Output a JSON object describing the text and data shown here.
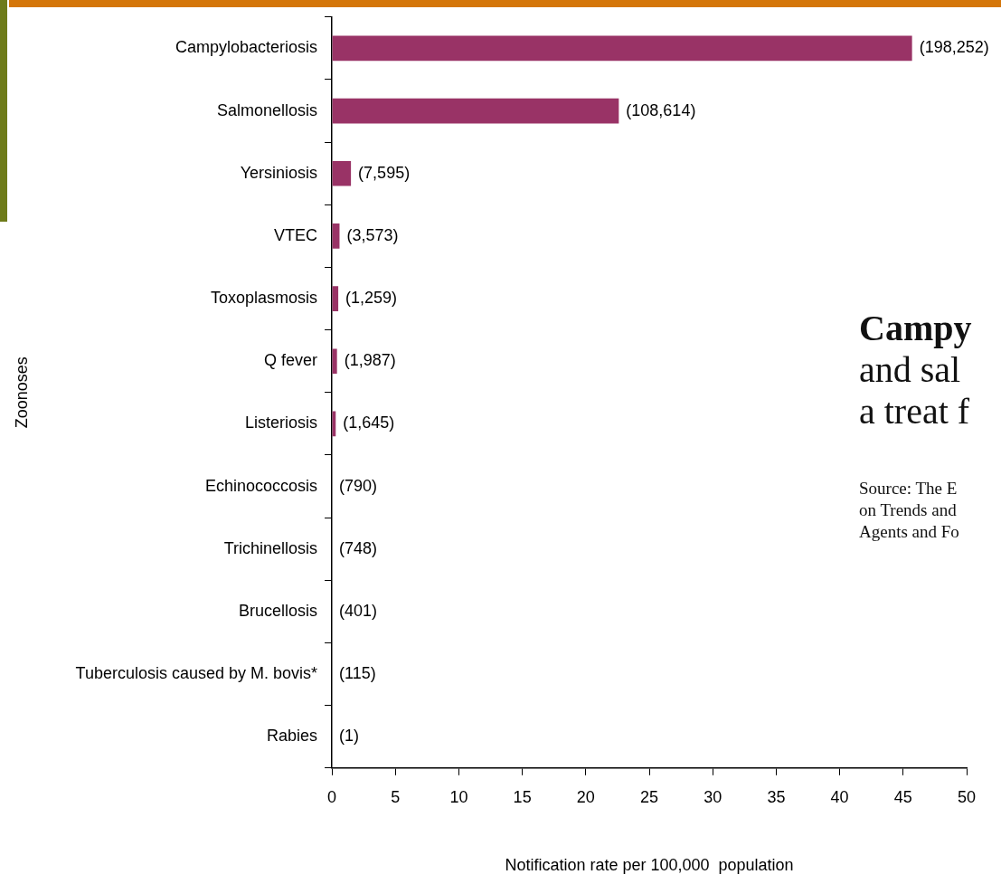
{
  "chart_data": {
    "type": "bar",
    "orientation": "horizontal",
    "categories": [
      "Campylobacteriosis",
      "Salmonellosis",
      "Yersiniosis",
      "VTEC",
      "Toxoplasmosis",
      "Q fever",
      "Listeriosis",
      "Echinococcosis",
      "Trichinellosis",
      "Brucellosis",
      "Tuberculosis caused by M. bovis*",
      "Rabies"
    ],
    "values": [
      45.7,
      22.6,
      1.5,
      0.6,
      0.5,
      0.4,
      0.3,
      0,
      0,
      0,
      0,
      0
    ],
    "color": "#993366",
    "xlim": [
      0,
      50
    ],
    "xticks": [
      0,
      5,
      10,
      15,
      20,
      25,
      30,
      35,
      40,
      45,
      50
    ],
    "xlabel": "Notification rate per 100,000  population",
    "ylabel": "Zoonoses",
    "grid": false,
    "legend": false,
    "annotations": [
      {
        "text": "(198,252)",
        "x": 45.7,
        "y": "Campylobacteriosis"
      },
      {
        "text": "(108,614)",
        "x": 22.6,
        "y": "Salmonellosis"
      },
      {
        "text": "(7,595)",
        "x": 1.5,
        "y": "Yersiniosis"
      },
      {
        "text": "(3,573)",
        "x": 0.6,
        "y": "VTEC"
      },
      {
        "text": "(1,259)",
        "x": 0.5,
        "y": "Toxoplasmosis"
      },
      {
        "text": "(1,987)",
        "x": 0.4,
        "y": "Q fever"
      },
      {
        "text": "(1,645)",
        "x": 0.3,
        "y": "Listeriosis"
      },
      {
        "text": "(790)",
        "x": 0,
        "y": "Echinococcosis"
      },
      {
        "text": "(748)",
        "x": 0,
        "y": "Trichinellosis"
      },
      {
        "text": "(401)",
        "x": 0,
        "y": "Brucellosis"
      },
      {
        "text": "(115)",
        "x": 0,
        "y": "Tuberculosis caused by M. bovis*"
      },
      {
        "text": "(1)",
        "x": 0,
        "y": "Rabies"
      },
      "Campy",
      "and sal",
      "a treat f",
      "Source: The E",
      "on Trends and",
      "Agents and Fo"
    ]
  }
}
